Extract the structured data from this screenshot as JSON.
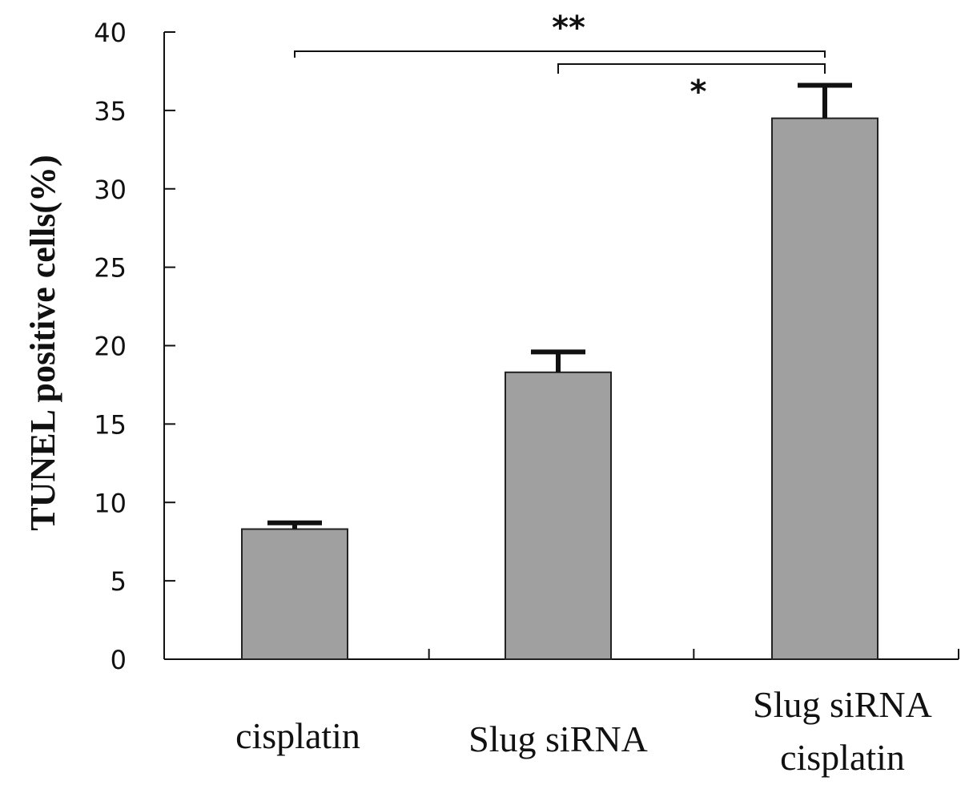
{
  "chart_data": {
    "type": "bar",
    "title": "",
    "xlabel": "",
    "ylabel": "TUNEL positive cells(%)",
    "ylim": [
      0,
      40
    ],
    "yticks": [
      0,
      5,
      10,
      15,
      20,
      25,
      30,
      35,
      40
    ],
    "ytick_labels": [
      "0",
      "5",
      "10",
      "15",
      "20",
      "25",
      "30",
      "35",
      "40"
    ],
    "categories": [
      [
        "cisplatin"
      ],
      [
        "Slug siRNA"
      ],
      [
        "Slug siRNA",
        "cisplatin"
      ]
    ],
    "values": [
      8.3,
      18.3,
      34.5
    ],
    "errors": [
      0.4,
      1.3,
      2.1
    ],
    "bar_color": "#a0a0a0",
    "significance": [
      {
        "from": 0,
        "to": 2,
        "label": "**"
      },
      {
        "from": 1,
        "to": 2,
        "label": "*"
      }
    ]
  }
}
